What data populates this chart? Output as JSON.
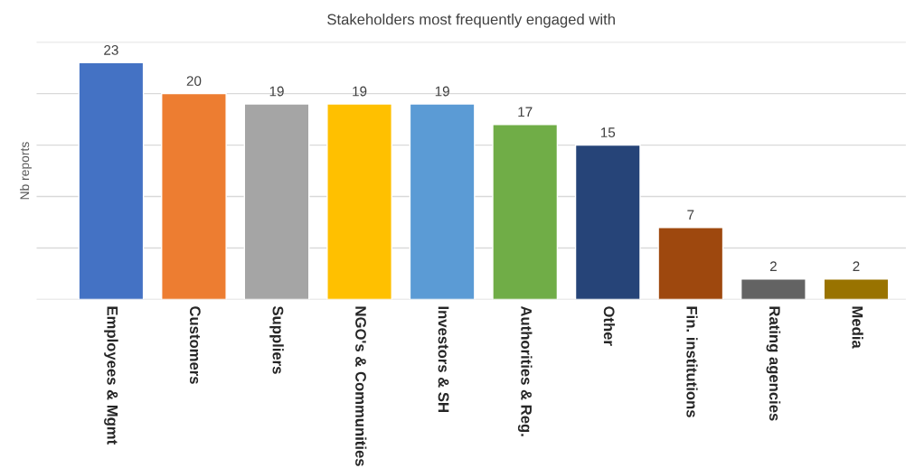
{
  "chart_data": {
    "type": "bar",
    "title": "Stakeholders most frequently engaged with",
    "ylabel": "Nb reports",
    "categories": [
      "Employees & Mgmt",
      "Customers",
      "Suppliers",
      "NGO's & Communities",
      "Investors & SH",
      "Authorities & Reg.",
      "Other",
      "Fin. institutions",
      "Rating agencies",
      "Media"
    ],
    "values": [
      23,
      20,
      19,
      19,
      19,
      17,
      15,
      7,
      2,
      2
    ],
    "colors": [
      "#4472c4",
      "#ed7d31",
      "#a5a5a5",
      "#ffc000",
      "#5b9bd5",
      "#70ad47",
      "#264478",
      "#9e480e",
      "#636363",
      "#997300"
    ],
    "ylim": [
      0,
      25
    ],
    "yticks": [
      {
        "value": 0,
        "label": null
      },
      {
        "value": 5,
        "label": null
      },
      {
        "value": 10,
        "label": null
      },
      {
        "value": 15,
        "label": null
      },
      {
        "value": 20,
        "label": null
      },
      {
        "value": 25,
        "label": null
      }
    ],
    "grid": "y",
    "data_labels": true,
    "tick_labels": "x"
  }
}
